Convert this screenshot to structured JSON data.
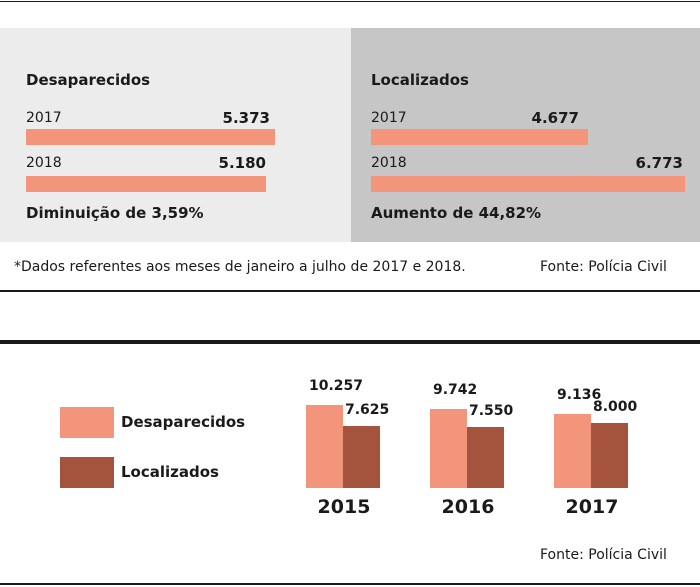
{
  "colors": {
    "desaparecidos": "#f3957b",
    "localizados": "#a4533c",
    "panel_left": "#ececec",
    "panel_right": "#c6c6c6"
  },
  "top": {
    "left": {
      "title": "Desaparecidos",
      "rows": [
        {
          "year": "2017",
          "value": 5373,
          "label": "5.373"
        },
        {
          "year": "2018",
          "value": 5180,
          "label": "5.180"
        }
      ],
      "change": "Diminuição de 3,59%"
    },
    "right": {
      "title": "Localizados",
      "rows": [
        {
          "year": "2017",
          "value": 4677,
          "label": "4.677"
        },
        {
          "year": "2018",
          "value": 6773,
          "label": "6.773"
        }
      ],
      "change": "Aumento de 44,82%"
    },
    "footnote": "*Dados referentes aos meses de janeiro a julho de 2017 e 2018.",
    "source": "Fonte: Polícia Civil"
  },
  "chart_data": {
    "type": "bar",
    "categories": [
      "2015",
      "2016",
      "2017"
    ],
    "series": [
      {
        "name": "Desaparecidos",
        "values": [
          10257,
          9742,
          9136
        ],
        "labels": [
          "10.257",
          "9.742",
          "9.136"
        ]
      },
      {
        "name": "Localizados",
        "values": [
          7625,
          7550,
          8000
        ],
        "labels": [
          "7.625",
          "7.550",
          "8.000"
        ]
      }
    ],
    "legend": "left",
    "source": "Fonte: Polícia Civil"
  }
}
